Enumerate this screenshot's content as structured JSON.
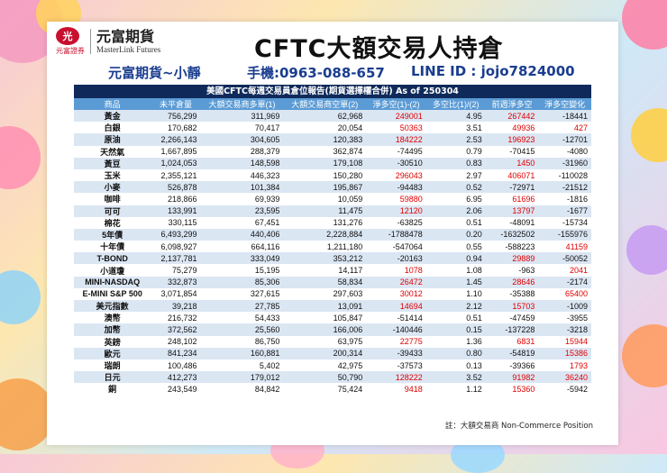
{
  "header": {
    "logo_badge": "光",
    "logo_sub": "元富證券",
    "logo_name": "元富期貨",
    "logo_en": "MasterLink Futures",
    "title": "CFTC大額交易人持倉",
    "contact_name": "元富期貨~小靜",
    "phone": "手機:0963-088-657",
    "line_id": "LINE ID : jojo7824000"
  },
  "table": {
    "caption": "美國CFTC每週交易員倉位報告(期貨選擇權合併) As of 250304",
    "columns": [
      "商品",
      "未平倉量",
      "大額交易商多單(1)",
      "大額交易商空單(2)",
      "淨多空(1)-(2)",
      "多空比(1)/(2)",
      "前週淨多空",
      "淨多空變化"
    ],
    "rows": [
      [
        "黃金",
        "756,299",
        "311,969",
        "62,968",
        "249001",
        "4.95",
        "267442",
        "-18441"
      ],
      [
        "白銀",
        "170,682",
        "70,417",
        "20,054",
        "50363",
        "3.51",
        "49936",
        "427"
      ],
      [
        "原油",
        "2,266,143",
        "304,605",
        "120,383",
        "184222",
        "2.53",
        "196923",
        "-12701"
      ],
      [
        "天然氣",
        "1,667,895",
        "288,379",
        "362,874",
        "-74495",
        "0.79",
        "-70415",
        "-4080"
      ],
      [
        "黃豆",
        "1,024,053",
        "148,598",
        "179,108",
        "-30510",
        "0.83",
        "1450",
        "-31960"
      ],
      [
        "玉米",
        "2,355,121",
        "446,323",
        "150,280",
        "296043",
        "2.97",
        "406071",
        "-110028"
      ],
      [
        "小麥",
        "526,878",
        "101,384",
        "195,867",
        "-94483",
        "0.52",
        "-72971",
        "-21512"
      ],
      [
        "咖啡",
        "218,866",
        "69,939",
        "10,059",
        "59880",
        "6.95",
        "61696",
        "-1816"
      ],
      [
        "可可",
        "133,991",
        "23,595",
        "11,475",
        "12120",
        "2.06",
        "13797",
        "-1677"
      ],
      [
        "棉花",
        "330,115",
        "67,451",
        "131,276",
        "-63825",
        "0.51",
        "-48091",
        "-15734"
      ],
      [
        "5年債",
        "6,493,299",
        "440,406",
        "2,228,884",
        "-1788478",
        "0.20",
        "-1632502",
        "-155976"
      ],
      [
        "十年債",
        "6,098,927",
        "664,116",
        "1,211,180",
        "-547064",
        "0.55",
        "-588223",
        "41159"
      ],
      [
        "T-BOND",
        "2,137,781",
        "333,049",
        "353,212",
        "-20163",
        "0.94",
        "29889",
        "-50052"
      ],
      [
        "小道瓊",
        "75,279",
        "15,195",
        "14,117",
        "1078",
        "1.08",
        "-963",
        "2041"
      ],
      [
        "MINI-NASDAQ",
        "332,873",
        "85,306",
        "58,834",
        "26472",
        "1.45",
        "28646",
        "-2174"
      ],
      [
        "E-MINI S&P 500",
        "3,071,854",
        "327,615",
        "297,603",
        "30012",
        "1.10",
        "-35388",
        "65400"
      ],
      [
        "美元指數",
        "39,218",
        "27,785",
        "13,091",
        "14694",
        "2.12",
        "15703",
        "-1009"
      ],
      [
        "澳幣",
        "216,732",
        "54,433",
        "105,847",
        "-51414",
        "0.51",
        "-47459",
        "-3955"
      ],
      [
        "加幣",
        "372,562",
        "25,560",
        "166,006",
        "-140446",
        "0.15",
        "-137228",
        "-3218"
      ],
      [
        "英鎊",
        "248,102",
        "86,750",
        "63,975",
        "22775",
        "1.36",
        "6831",
        "15944"
      ],
      [
        "歐元",
        "841,234",
        "160,881",
        "200,314",
        "-39433",
        "0.80",
        "-54819",
        "15386"
      ],
      [
        "瑞朗",
        "100,486",
        "5,402",
        "42,975",
        "-37573",
        "0.13",
        "-39366",
        "1793"
      ],
      [
        "日元",
        "412,273",
        "179,012",
        "50,790",
        "128222",
        "3.52",
        "91982",
        "36240"
      ],
      [
        "銅",
        "243,549",
        "84,842",
        "75,424",
        "9418",
        "1.12",
        "15360",
        "-5942"
      ]
    ],
    "note": "註：大額交易商 Non-Commerce Position"
  },
  "colors": {
    "navy": "#0f2a5a",
    "header_blue": "#5b9bd5",
    "positive_red": "#e00000",
    "stripe": "#dbe6f3"
  }
}
